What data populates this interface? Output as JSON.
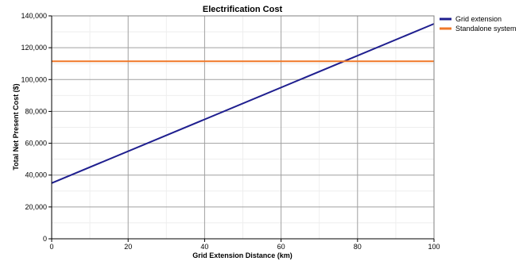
{
  "chart_data": {
    "type": "line",
    "title": "Electrification Cost",
    "xlabel": "Grid Extension Distance (km)",
    "ylabel": "Total Net Present Cost ($)",
    "xlim": [
      0,
      100
    ],
    "ylim": [
      0,
      140000
    ],
    "x_ticks": [
      0,
      20,
      40,
      60,
      80,
      100
    ],
    "x_tick_labels": [
      "0",
      "20",
      "40",
      "60",
      "80",
      "100"
    ],
    "y_ticks": [
      0,
      20000,
      40000,
      60000,
      80000,
      100000,
      120000,
      140000
    ],
    "y_tick_labels": [
      "0",
      "20,000",
      "40,000",
      "60,000",
      "80,000",
      "100,000",
      "120,000",
      "140,000"
    ],
    "grid": true,
    "legend_position": "right",
    "series": [
      {
        "name": "Grid extension",
        "color": "#1f1f8f",
        "x": [
          0,
          100
        ],
        "y": [
          35000,
          135000
        ]
      },
      {
        "name": "Standalone system",
        "color": "#f07828",
        "x": [
          0,
          100
        ],
        "y": [
          111500,
          111500
        ]
      }
    ]
  }
}
